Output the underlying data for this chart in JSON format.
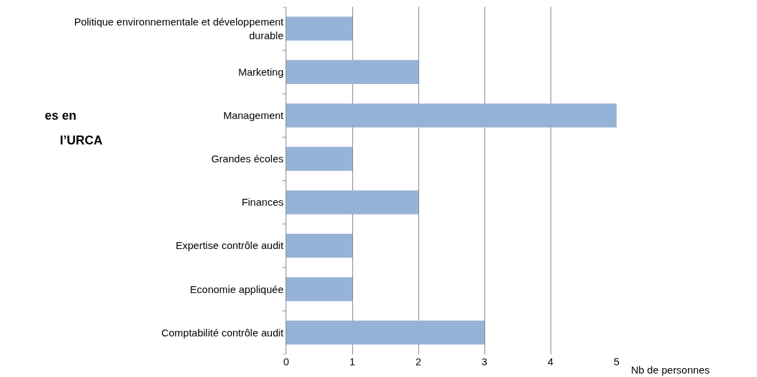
{
  "chart_data": {
    "type": "bar",
    "orientation": "horizontal",
    "categories": [
      "Politique environnementale et développement durable",
      "Marketing",
      "Management",
      "Grandes écoles",
      "Finances",
      "Expertise contrôle audit",
      "Economie appliquée",
      "Comptabilité contrôle audit"
    ],
    "values": [
      1,
      2,
      5,
      1,
      2,
      1,
      1,
      3
    ],
    "color": "#95b3d7",
    "xlabel": "Nb de personnes",
    "xlim": [
      0,
      5
    ],
    "xticks": [
      0,
      1,
      2,
      3,
      4,
      5
    ],
    "grid": "x",
    "legend": false,
    "annotations": [
      "es en",
      "l’URCA"
    ]
  }
}
